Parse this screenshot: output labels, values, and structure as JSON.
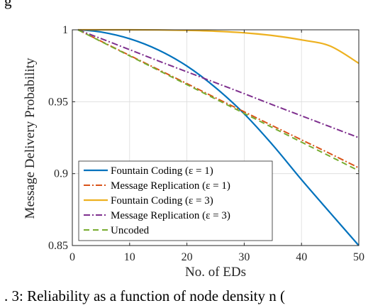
{
  "chart_data": {
    "type": "line",
    "title": "",
    "xlabel": "No. of EDs",
    "ylabel": "Message Delivery Probability",
    "xlim": [
      0,
      50
    ],
    "ylim": [
      0.85,
      1.0
    ],
    "xticks": [
      "0",
      "10",
      "20",
      "30",
      "40",
      "50"
    ],
    "yticks": [
      "0.85",
      "0.9",
      "0.95",
      "1"
    ],
    "grid": true,
    "legend_position": "bottom-left",
    "x": [
      1,
      5,
      10,
      15,
      20,
      25,
      30,
      35,
      40,
      45,
      50
    ],
    "series": [
      {
        "name": "Fountain Coding (ε = 1)",
        "color": "#0072BD",
        "style": "solid",
        "values": [
          1.0,
          0.9985,
          0.9938,
          0.986,
          0.9748,
          0.9598,
          0.9416,
          0.9198,
          0.8958,
          0.8728,
          0.85
        ]
      },
      {
        "name": "Message Replication (ε = 1)",
        "color": "#D95319",
        "style": "dashdot",
        "values": [
          1.0,
          0.9921,
          0.9822,
          0.9724,
          0.9626,
          0.9527,
          0.943,
          0.9332,
          0.9235,
          0.9139,
          0.904
        ]
      },
      {
        "name": "Fountain Coding (ε = 3)",
        "color": "#EDB120",
        "style": "solid",
        "values": [
          1.0,
          1.0,
          1.0,
          0.9999,
          0.9996,
          0.999,
          0.9979,
          0.996,
          0.993,
          0.9887,
          0.9767
        ]
      },
      {
        "name": "Message Replication (ε = 3)",
        "color": "#7E2F8E",
        "style": "dashdot",
        "values": [
          1.0,
          0.9939,
          0.9862,
          0.9784,
          0.9708,
          0.9632,
          0.9556,
          0.9478,
          0.9402,
          0.9326,
          0.925
        ]
      },
      {
        "name": "Uncoded",
        "color": "#77AC30",
        "style": "dashed",
        "values": [
          1.0,
          0.9919,
          0.9819,
          0.9719,
          0.9619,
          0.9519,
          0.9419,
          0.9319,
          0.9219,
          0.912,
          0.902
        ]
      }
    ]
  },
  "legend_labels": {
    "fc1": "Fountain Coding (ε = 1)",
    "mr1": "Message Replication (ε = 1)",
    "fc3": "Fountain Coding (ε = 3)",
    "mr3": "Message Replication (ε = 3)",
    "unc": "Uncoded"
  },
  "caption_fragment": ". 3: Reliability as a function of node density n (",
  "top_fragment": "g"
}
